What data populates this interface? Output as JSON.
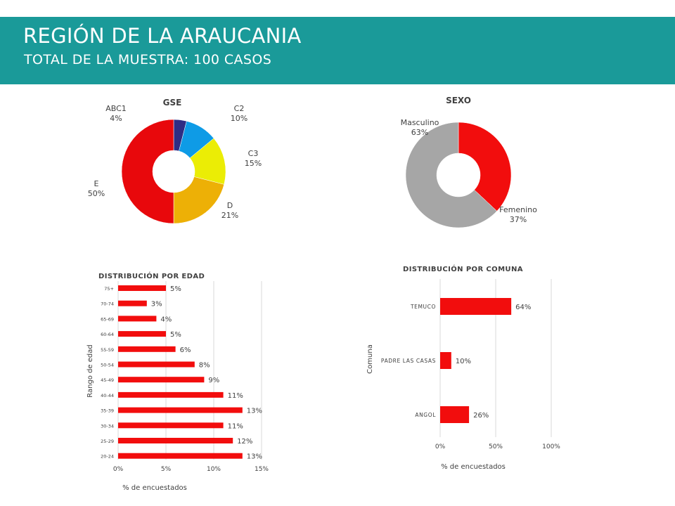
{
  "header": {
    "title": "REGIÓN DE LA ARAUCANIA",
    "subtitle": "TOTAL DE LA MUESTRA: 100 CASOS"
  },
  "chart_data": [
    {
      "type": "pie",
      "title": "GSE",
      "donut": true,
      "slices": [
        {
          "label": "ABC1",
          "value": 4,
          "value_label": "4%",
          "color": "#2e2d84"
        },
        {
          "label": "C2",
          "value": 10,
          "value_label": "10%",
          "color": "#0e9be6"
        },
        {
          "label": "C3",
          "value": 15,
          "value_label": "15%",
          "color": "#ebed05"
        },
        {
          "label": "D",
          "value": 21,
          "value_label": "21%",
          "color": "#edb006"
        },
        {
          "label": "E",
          "value": 50,
          "value_label": "50%",
          "color": "#e8080c"
        }
      ]
    },
    {
      "type": "pie",
      "title": "SEXO",
      "donut": true,
      "slices": [
        {
          "label": "Femenino",
          "value": 37,
          "value_label": "37%",
          "color": "#f20d0d"
        },
        {
          "label": "Masculino",
          "value": 63,
          "value_label": "63%",
          "color": "#a6a6a6"
        }
      ]
    },
    {
      "type": "bar",
      "orientation": "horizontal",
      "title": "DISTRIBUCIÓN POR EDAD",
      "xlabel": "% de encuestados",
      "ylabel": "Rango de edad",
      "xlim": [
        0,
        15
      ],
      "xticks": [
        "0%",
        "5%",
        "10%",
        "15%"
      ],
      "bar_color": "#f20d0d",
      "categories": [
        "75+",
        "70-74",
        "65-69",
        "60-64",
        "55-59",
        "50-54",
        "45-49",
        "40-44",
        "35-39",
        "30-34",
        "25-29",
        "20-24"
      ],
      "values": [
        5,
        3,
        4,
        5,
        6,
        8,
        9,
        11,
        13,
        11,
        12,
        13
      ],
      "value_labels": [
        "5%",
        "3%",
        "4%",
        "5%",
        "6%",
        "8%",
        "9%",
        "11%",
        "13%",
        "11%",
        "12%",
        "13%"
      ]
    },
    {
      "type": "bar",
      "orientation": "horizontal",
      "title": "DISTRIBUCIÓN POR COMUNA",
      "xlabel": "% de encuestados",
      "ylabel": "Comuna",
      "xlim": [
        0,
        100
      ],
      "xticks": [
        "0%",
        "50%",
        "100%"
      ],
      "bar_color": "#f20d0d",
      "categories": [
        "TEMUCO",
        "PADRE LAS CASAS",
        "ANGOL"
      ],
      "values": [
        64,
        10,
        26
      ],
      "value_labels": [
        "64%",
        "10%",
        "26%"
      ]
    }
  ]
}
